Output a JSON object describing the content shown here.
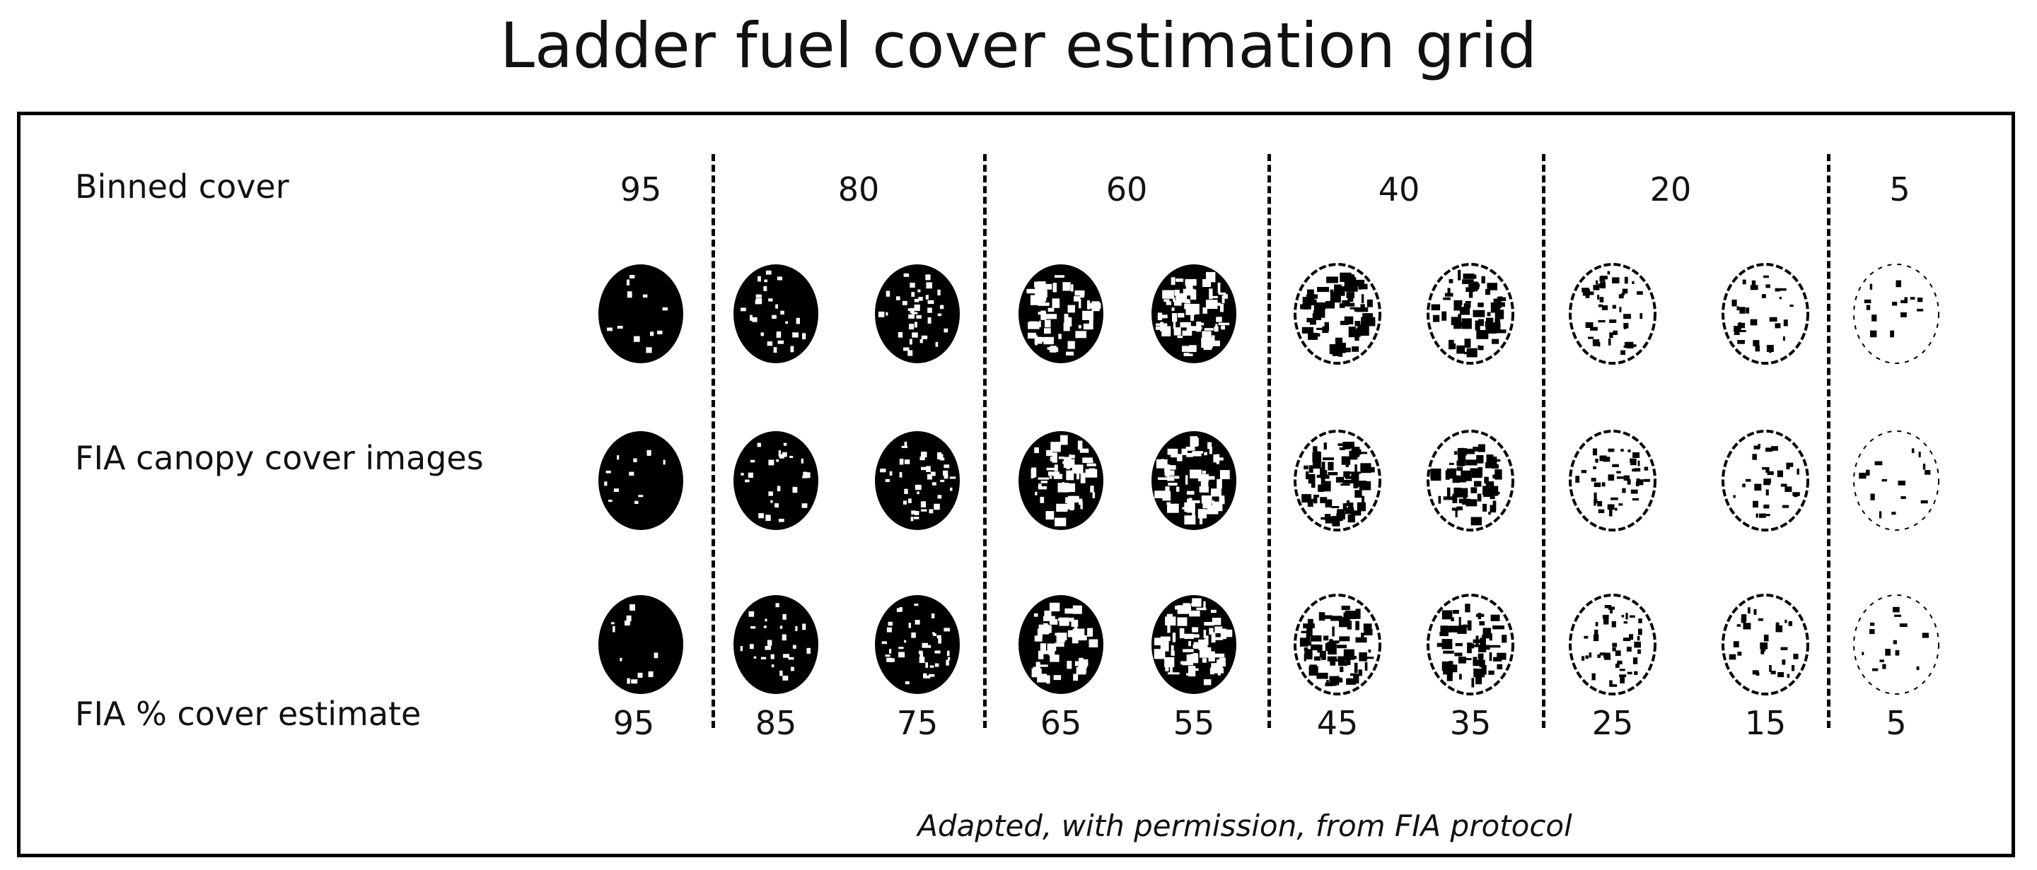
{
  "title": "Ladder fuel cover estimation grid",
  "row_labels": {
    "binned": "Binned cover",
    "images": "FIA canopy cover images",
    "estimate": "FIA % cover estimate"
  },
  "binned_cover": [
    "95",
    "80",
    "60",
    "40",
    "20",
    "5"
  ],
  "fia_estimates": [
    "95",
    "85",
    "75",
    "65",
    "55",
    "45",
    "35",
    "25",
    "15",
    "5"
  ],
  "caption": "Adapted, with permission, from FIA protocol",
  "colors": {
    "ink": "#000000",
    "paper": "#ffffff"
  }
}
